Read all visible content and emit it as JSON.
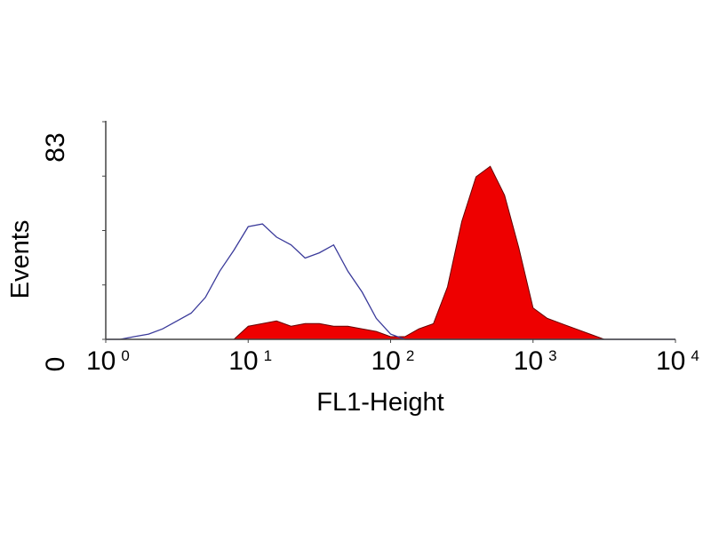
{
  "chart_data": {
    "type": "area",
    "title": "",
    "xlabel": "FL1-Height",
    "ylabel": "Events",
    "xscale": "log",
    "xlim": [
      1,
      10000
    ],
    "ylim": [
      0,
      83
    ],
    "grid": false,
    "x_ticks": [
      {
        "base": "10",
        "exp": "0"
      },
      {
        "base": "10",
        "exp": "1"
      },
      {
        "base": "10",
        "exp": "2"
      },
      {
        "base": "10",
        "exp": "3"
      },
      {
        "base": "10",
        "exp": "4"
      }
    ],
    "y_ticks": [
      "0",
      "83"
    ],
    "x": [
      1,
      1.26,
      1.58,
      2,
      2.51,
      3.16,
      3.98,
      5.01,
      6.31,
      7.94,
      10,
      12.6,
      15.8,
      20,
      25.1,
      31.6,
      39.8,
      50.1,
      63.1,
      79.4,
      100,
      126,
      158,
      200,
      251,
      316,
      398,
      501,
      631,
      794,
      1000,
      1259,
      1585,
      1995,
      2512,
      3162,
      3981,
      5012,
      6310,
      7943,
      10000
    ],
    "series": [
      {
        "style": "outline",
        "color": "#3a3a9a",
        "values": [
          0,
          0,
          1,
          2,
          4,
          7,
          10,
          16,
          26,
          34,
          43,
          44,
          39,
          36,
          31,
          33,
          36,
          26,
          18,
          8,
          2,
          0,
          0,
          0,
          0,
          0,
          0,
          0,
          0,
          0,
          0,
          0,
          0,
          0,
          0,
          0,
          0,
          0,
          0,
          0,
          0
        ]
      },
      {
        "style": "filled",
        "color": "#ee0000",
        "values": [
          0,
          0,
          0,
          0,
          0,
          0,
          0,
          0,
          0,
          0,
          5,
          6,
          7,
          5,
          6,
          6,
          5,
          5,
          4,
          3,
          1,
          1,
          4,
          6,
          20,
          45,
          62,
          66,
          55,
          35,
          12,
          8,
          6,
          4,
          2,
          0,
          0,
          0,
          0,
          0,
          0
        ]
      }
    ]
  }
}
